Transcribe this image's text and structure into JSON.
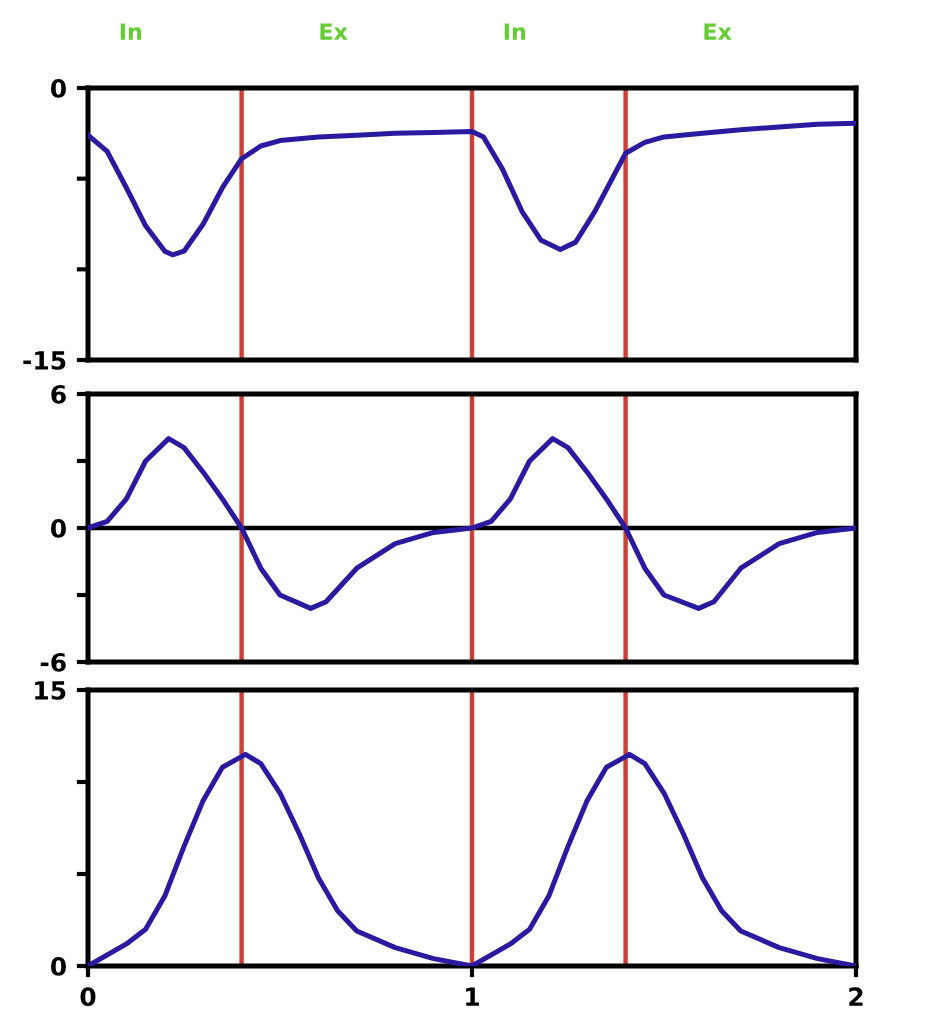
{
  "chart_data": [
    {
      "type": "line",
      "annotations": [
        "In",
        "Ex",
        "In",
        "Ex"
      ],
      "tick_labels": "y",
      "xlim": [
        0,
        2
      ],
      "ylim": [
        -15,
        0
      ],
      "yticks": [
        0,
        {
          "value": -5,
          "label": null
        },
        {
          "value": -10,
          "label": null
        },
        -15
      ],
      "ref_lines": [
        {
          "axis": "x",
          "value": 0.4,
          "color": "#c8423a"
        },
        {
          "axis": "x",
          "value": 1,
          "color": "#c8423a"
        },
        {
          "axis": "x",
          "value": 1.4,
          "color": "#c8423a"
        }
      ],
      "series": [
        {
          "color": "#2a1aa0",
          "x": [
            0,
            0.05,
            0.1,
            0.15,
            0.2,
            0.22,
            0.25,
            0.3,
            0.35,
            0.4,
            0.45,
            0.5,
            0.6,
            0.7,
            0.8,
            0.9,
            1.0,
            1.03,
            1.08,
            1.13,
            1.18,
            1.23,
            1.27,
            1.32,
            1.37,
            1.4,
            1.45,
            1.5,
            1.6,
            1.7,
            1.8,
            1.9,
            2.0
          ],
          "values": [
            -2.6,
            -3.5,
            -5.5,
            -7.6,
            -9.0,
            -9.2,
            -9.0,
            -7.5,
            -5.5,
            -3.9,
            -3.2,
            -2.9,
            -2.7,
            -2.6,
            -2.5,
            -2.45,
            -2.4,
            -2.7,
            -4.5,
            -6.8,
            -8.4,
            -8.9,
            -8.5,
            -6.8,
            -4.8,
            -3.6,
            -3.0,
            -2.7,
            -2.5,
            -2.3,
            -2.15,
            -2.0,
            -1.95
          ]
        }
      ]
    },
    {
      "type": "line",
      "tick_labels": "y",
      "xlim": [
        0,
        2
      ],
      "ylim": [
        -6,
        6
      ],
      "yticks": [
        6,
        {
          "value": 3,
          "label": null
        },
        0,
        {
          "value": -3,
          "label": null
        },
        -6
      ],
      "ref_lines": [
        {
          "axis": "y",
          "value": 0,
          "color": "#000000"
        },
        {
          "axis": "x",
          "value": 0.4,
          "color": "#c8423a"
        },
        {
          "axis": "x",
          "value": 1,
          "color": "#c8423a"
        },
        {
          "axis": "x",
          "value": 1.4,
          "color": "#c8423a"
        }
      ],
      "series": [
        {
          "color": "#2a1aa0",
          "x": [
            0,
            0.05,
            0.1,
            0.15,
            0.21,
            0.25,
            0.3,
            0.35,
            0.4,
            0.45,
            0.5,
            0.58,
            0.62,
            0.7,
            0.8,
            0.9,
            1.0,
            1.05,
            1.1,
            1.15,
            1.21,
            1.25,
            1.3,
            1.35,
            1.4,
            1.45,
            1.5,
            1.59,
            1.63,
            1.7,
            1.8,
            1.9,
            2.0
          ],
          "values": [
            0,
            0.3,
            1.3,
            3.0,
            4.0,
            3.6,
            2.5,
            1.3,
            0,
            -1.8,
            -3.0,
            -3.6,
            -3.3,
            -1.8,
            -0.7,
            -0.2,
            0,
            0.3,
            1.3,
            3.0,
            4.0,
            3.6,
            2.5,
            1.3,
            0,
            -1.8,
            -3.0,
            -3.6,
            -3.3,
            -1.8,
            -0.7,
            -0.2,
            0
          ]
        }
      ]
    },
    {
      "type": "line",
      "xlim": [
        0,
        2
      ],
      "xticks": [
        0,
        1,
        2
      ],
      "ylim": [
        0,
        15
      ],
      "yticks": [
        0,
        {
          "value": 5,
          "label": null
        },
        {
          "value": 10,
          "label": null
        },
        15
      ],
      "ref_lines": [
        {
          "axis": "x",
          "value": 0.4,
          "color": "#c8423a"
        },
        {
          "axis": "x",
          "value": 1,
          "color": "#c8423a"
        },
        {
          "axis": "x",
          "value": 1.4,
          "color": "#c8423a"
        }
      ],
      "series": [
        {
          "color": "#2a1aa0",
          "x": [
            0,
            0.1,
            0.15,
            0.2,
            0.25,
            0.3,
            0.35,
            0.41,
            0.45,
            0.5,
            0.55,
            0.6,
            0.65,
            0.7,
            0.8,
            0.9,
            1.0,
            1.1,
            1.15,
            1.2,
            1.25,
            1.3,
            1.35,
            1.41,
            1.45,
            1.5,
            1.55,
            1.6,
            1.65,
            1.7,
            1.8,
            1.9,
            2.0
          ],
          "values": [
            0,
            1.2,
            2.0,
            3.8,
            6.5,
            9.0,
            10.8,
            11.5,
            11.0,
            9.4,
            7.2,
            4.8,
            3.0,
            1.9,
            1.0,
            0.4,
            0,
            1.2,
            2.0,
            3.8,
            6.5,
            9.0,
            10.8,
            11.5,
            11.0,
            9.4,
            7.2,
            4.8,
            3.0,
            1.9,
            1.0,
            0.4,
            0
          ]
        }
      ]
    }
  ]
}
